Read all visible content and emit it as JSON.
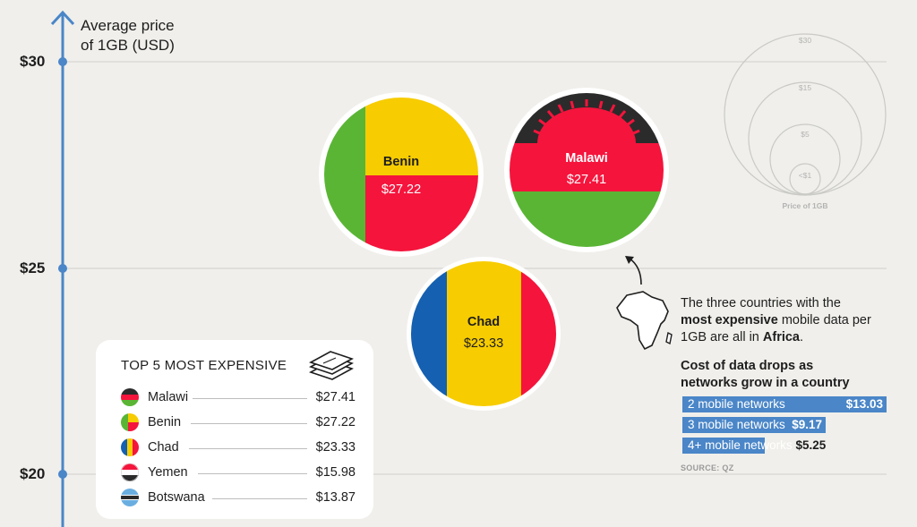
{
  "y_axis": {
    "label_line1": "Average price",
    "label_line2": "of 1GB (USD)",
    "ticks": [
      "$30",
      "$25",
      "$20"
    ],
    "tick_values": [
      30,
      25,
      20
    ]
  },
  "bubbles": [
    {
      "country": "Benin",
      "price_label": "$27.22"
    },
    {
      "country": "Malawi",
      "price_label": "$27.41"
    },
    {
      "country": "Chad",
      "price_label": "$23.33"
    }
  ],
  "size_legend": {
    "labels": [
      "$30",
      "$15",
      "$5",
      "<$1"
    ],
    "title": "Price of 1GB"
  },
  "note": {
    "part1": "The three countries with the",
    "bold1": "most expensive",
    "part2": " mobile data per 1GB are all in ",
    "bold2": "Africa",
    "part3": "."
  },
  "drops": {
    "title_line1": "Cost of data drops as",
    "title_line2": "networks grow in a country",
    "bars": [
      {
        "label": "2 mobile networks",
        "value_label": "$13.03"
      },
      {
        "label": "3 mobile networks",
        "value_label": "$9.17"
      },
      {
        "label": "4+ mobile networks",
        "value_label": "$5.25"
      }
    ]
  },
  "source": "SOURCE: QZ",
  "top5": {
    "title": "TOP 5 MOST EXPENSIVE",
    "rows": [
      {
        "country": "Malawi",
        "price": "$27.41"
      },
      {
        "country": "Benin",
        "price": "$27.22"
      },
      {
        "country": "Chad",
        "price": "$23.33"
      },
      {
        "country": "Yemen",
        "price": "$15.98"
      },
      {
        "country": "Botswana",
        "price": "$13.87"
      }
    ]
  },
  "colors": {
    "axis": "#4a86c8",
    "green": "#5ab535",
    "yellow": "#f7cc00",
    "red": "#f5143c",
    "black": "#2b2b2b",
    "blue": "#1560b0",
    "bar": "#4a86c8"
  },
  "chart_data": {
    "type": "scatter",
    "title": "",
    "ylabel": "Average price of 1GB (USD)",
    "ylim": [
      20,
      30
    ],
    "y_ticks": [
      20,
      25,
      30
    ],
    "grid": true,
    "series": [
      {
        "name": "Benin",
        "y": 27.22
      },
      {
        "name": "Malawi",
        "y": 27.41
      },
      {
        "name": "Chad",
        "y": 23.33
      }
    ],
    "top5": [
      {
        "country": "Malawi",
        "value": 27.41
      },
      {
        "country": "Benin",
        "value": 27.22
      },
      {
        "country": "Chad",
        "value": 23.33
      },
      {
        "country": "Yemen",
        "value": 15.98
      },
      {
        "country": "Botswana",
        "value": 13.87
      }
    ],
    "network_costs": [
      {
        "networks": "2 mobile networks",
        "value": 13.03
      },
      {
        "networks": "3 mobile networks",
        "value": 9.17
      },
      {
        "networks": "4+ mobile networks",
        "value": 5.25
      }
    ]
  }
}
